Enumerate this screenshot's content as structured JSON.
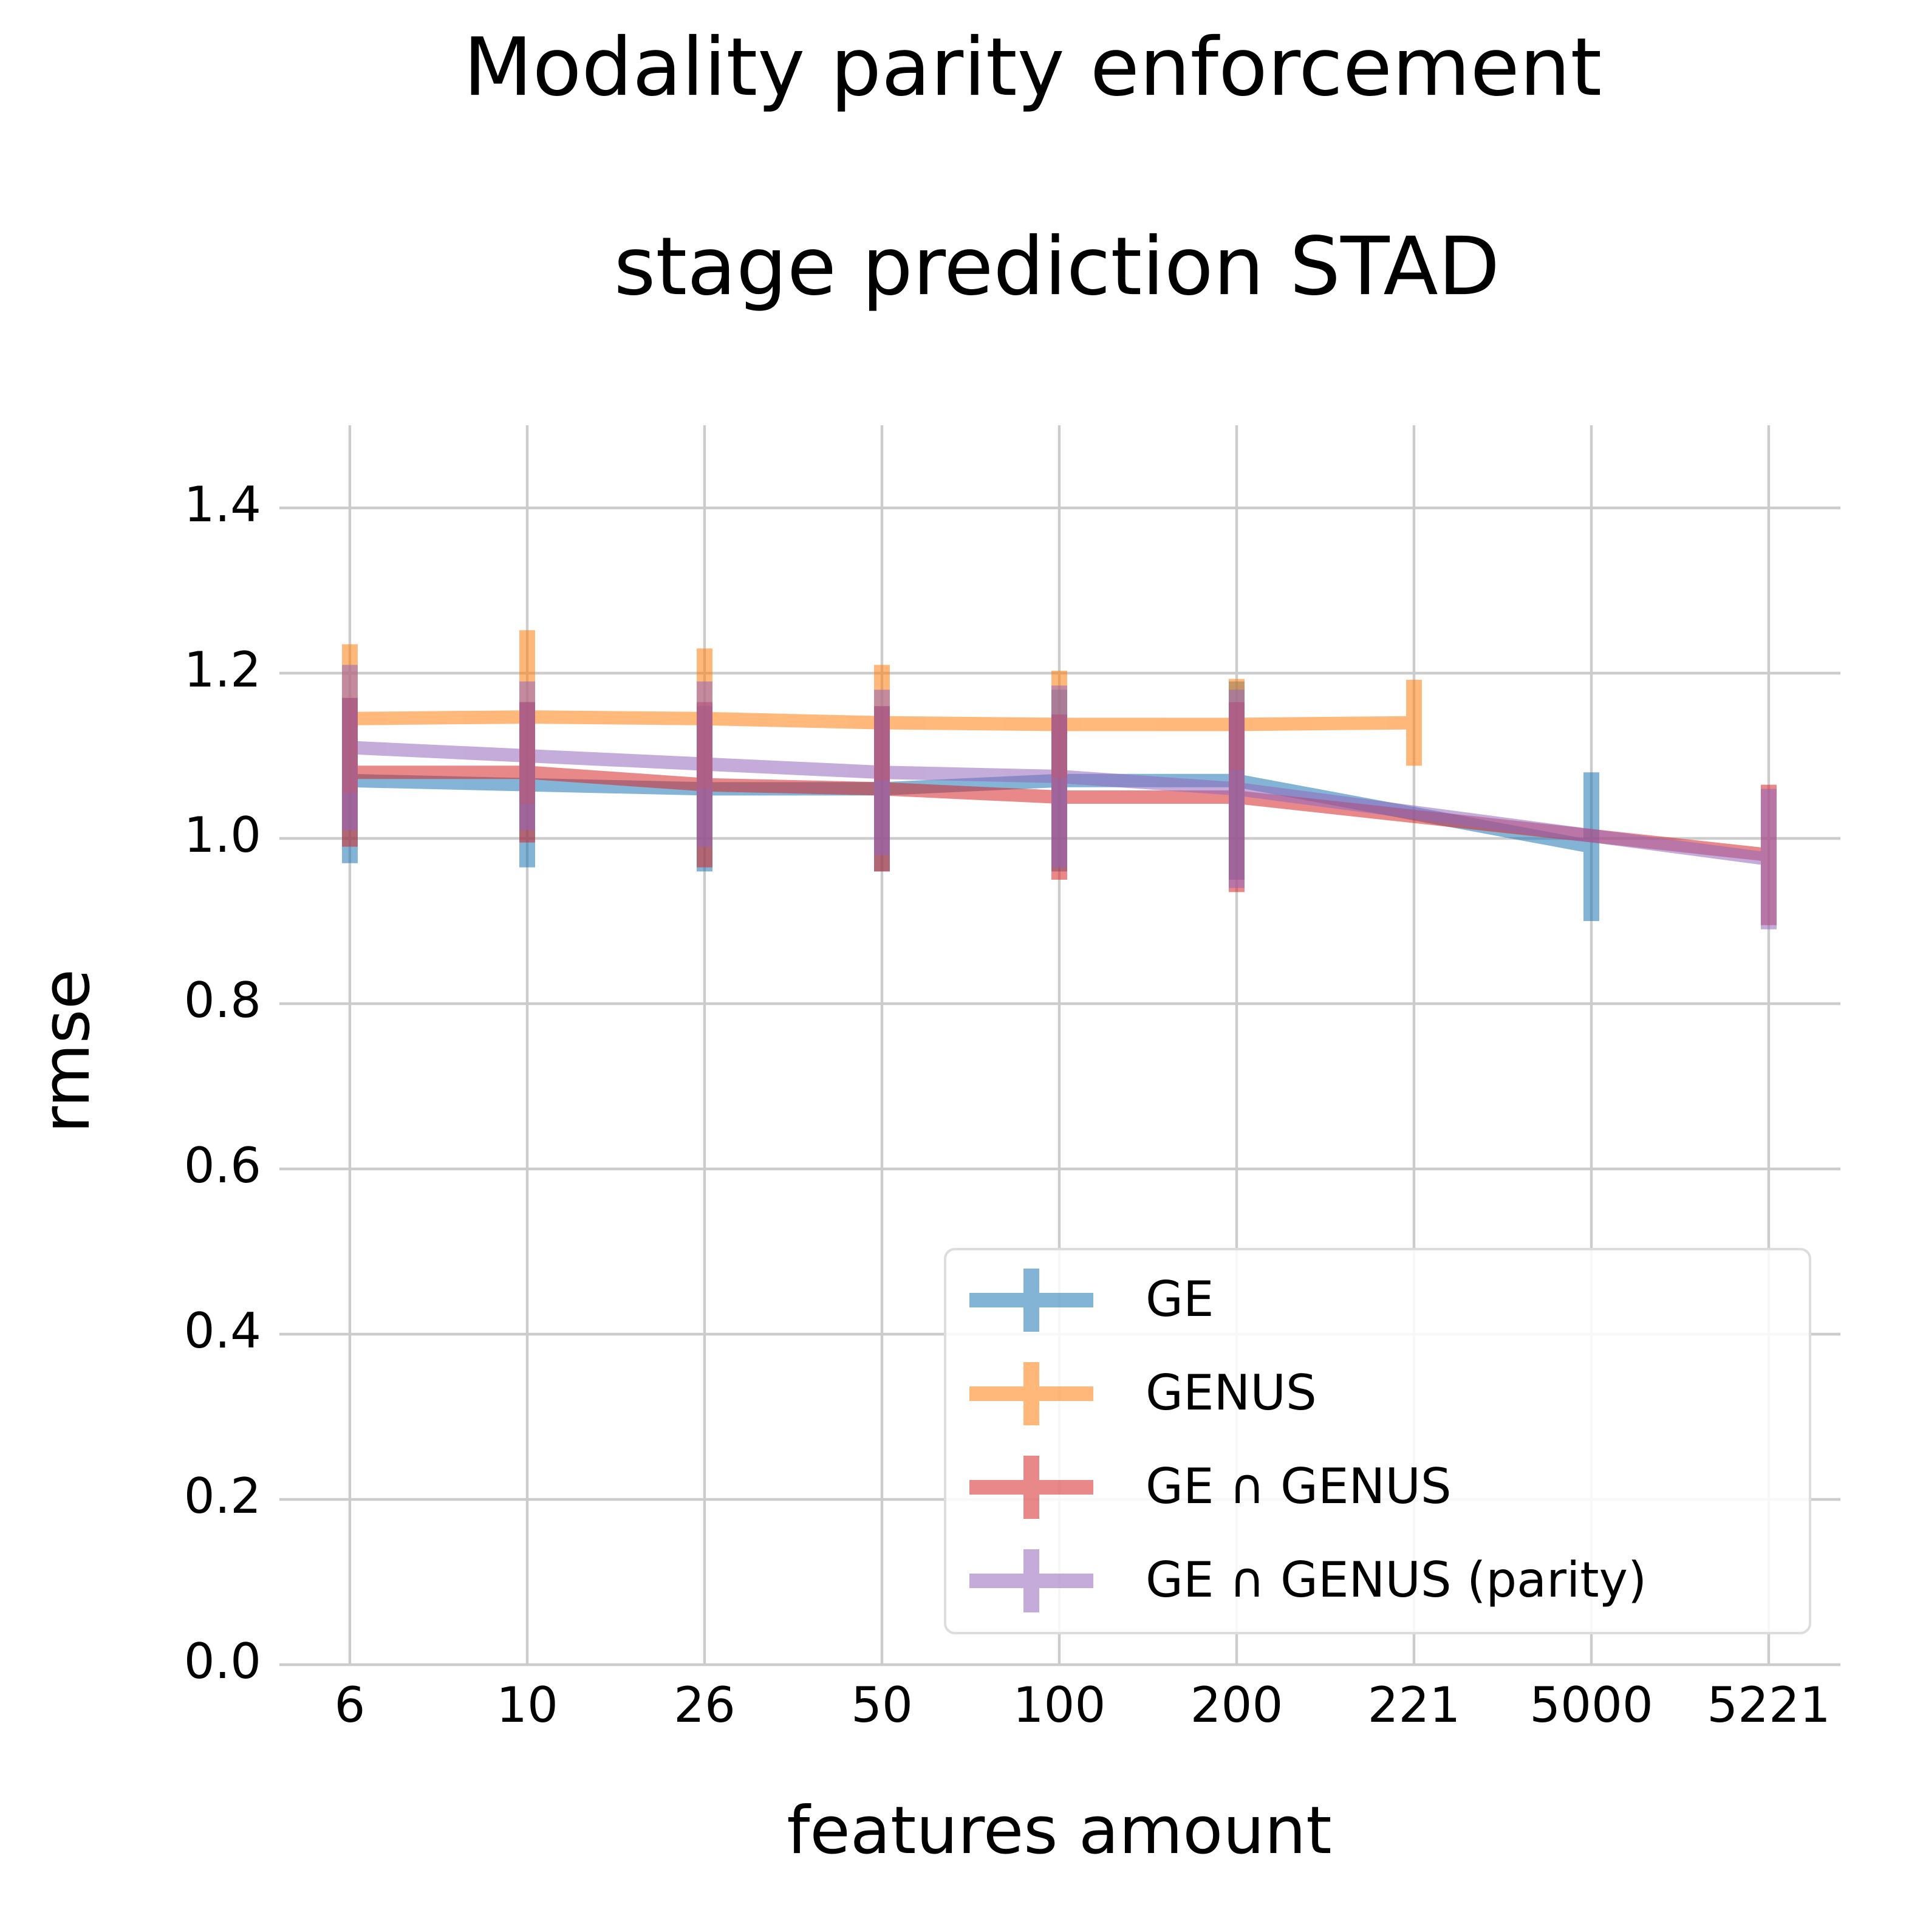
{
  "chart_data": {
    "type": "errorbar_line",
    "title": "Modality parity enforcement",
    "subtitle": "stage prediction STAD",
    "x_label": "features amount",
    "y_label": "rmse",
    "categories": [
      "6",
      "10",
      "26",
      "50",
      "100",
      "200",
      "221",
      "5000",
      "5221"
    ],
    "ylim": [
      0,
      1.5
    ],
    "yticks": [
      {
        "value": 0,
        "label": "0.0"
      },
      {
        "value": 0.2,
        "label": "0.2"
      },
      {
        "value": 0.4,
        "label": "0.4"
      },
      {
        "value": 0.6,
        "label": "0.6"
      },
      {
        "value": 0.8,
        "label": "0.8"
      },
      {
        "value": 1,
        "label": "1.0"
      },
      {
        "value": 1.2,
        "label": "1.2"
      },
      {
        "value": 1.4,
        "label": "1.4"
      }
    ],
    "grid": true,
    "legend": "lower right",
    "series": [
      {
        "name": "GE",
        "color": "#1f77b4",
        "x": [
          "6",
          "10",
          "26",
          "50",
          "100",
          "200",
          "5000"
        ],
        "values": [
          1.07,
          1.065,
          1.06,
          1.06,
          1.07,
          1.07,
          0.99
        ],
        "errors": [
          0.1,
          0.1,
          0.1,
          0.1,
          0.11,
          0.12,
          0.09
        ]
      },
      {
        "name": "GENUS",
        "color": "#ff7f0e",
        "x": [
          "6",
          "10",
          "26",
          "50",
          "100",
          "200",
          "221"
        ],
        "values": [
          1.145,
          1.147,
          1.145,
          1.14,
          1.138,
          1.138,
          1.14
        ],
        "errors": [
          0.09,
          0.105,
          0.085,
          0.07,
          0.065,
          0.055,
          0.052
        ]
      },
      {
        "name": "GE ∩ GENUS",
        "color": "#d62728",
        "x": [
          "6",
          "10",
          "26",
          "50",
          "100",
          "200",
          "5221"
        ],
        "values": [
          1.08,
          1.08,
          1.065,
          1.06,
          1.05,
          1.05,
          0.98
        ],
        "errors": [
          0.09,
          0.085,
          0.1,
          0.1,
          0.1,
          0.115,
          0.085
        ]
      },
      {
        "name": "GE ∩ GENUS (parity)",
        "color": "#9467bd",
        "x": [
          "6",
          "10",
          "26",
          "50",
          "100",
          "200",
          "5221"
        ],
        "values": [
          1.11,
          1.1,
          1.09,
          1.08,
          1.075,
          1.06,
          0.975
        ],
        "errors": [
          0.1,
          0.09,
          0.1,
          0.1,
          0.11,
          0.12,
          0.085
        ]
      }
    ]
  }
}
